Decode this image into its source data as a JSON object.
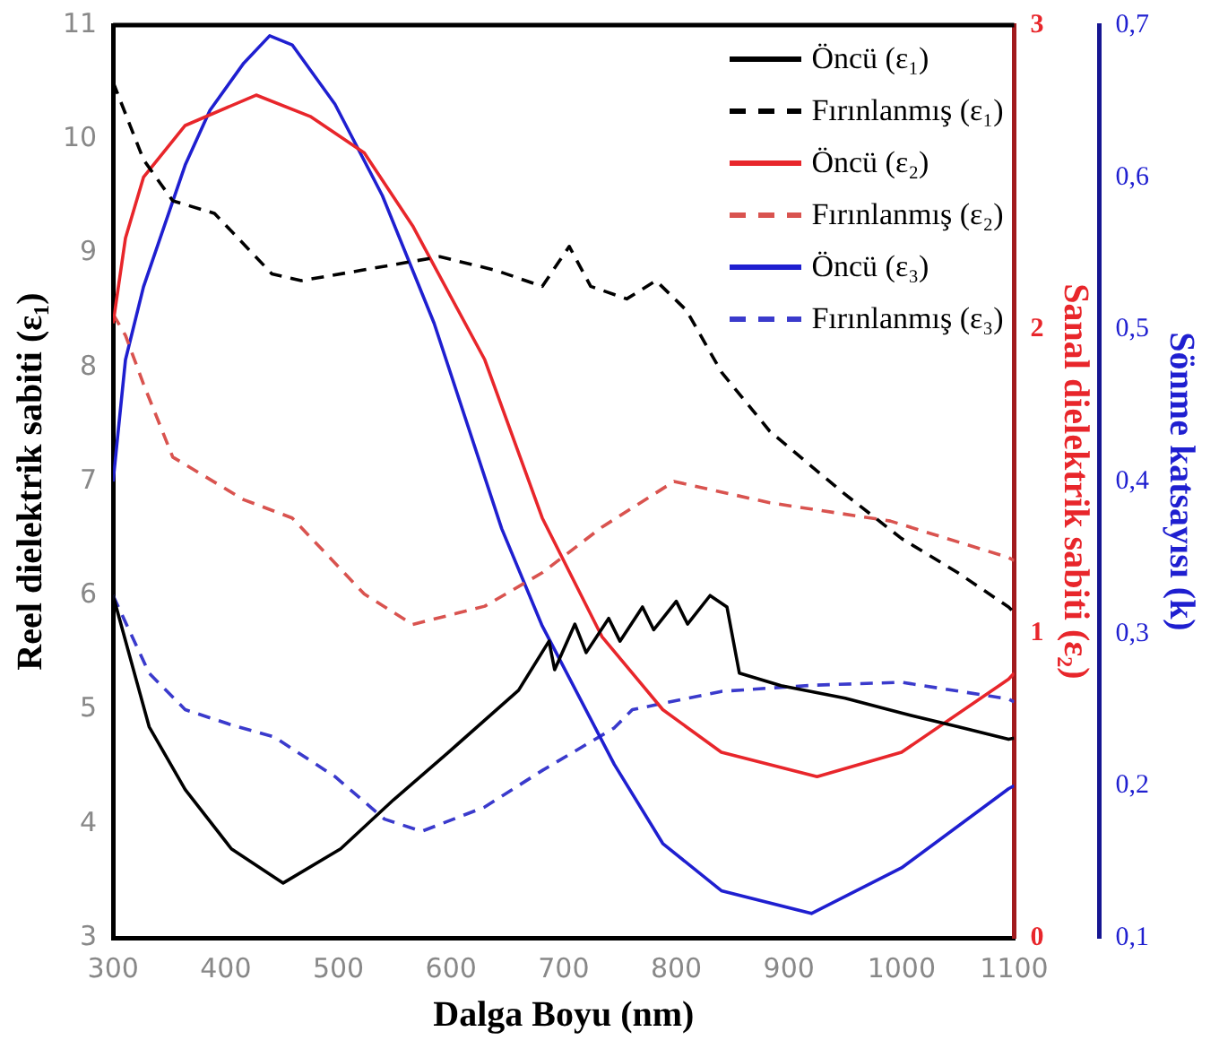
{
  "chart_data": {
    "type": "line",
    "xlabel": "Dalga Boyu (nm)",
    "ylabel": "Reel dielektrik sabiti (ε₁)",
    "y2label": "Sanal dielektrik sabiti (ε₂)",
    "y3label": "Sönme katsayısı (k)",
    "xlim": [
      300,
      1100
    ],
    "xticks": [
      300,
      400,
      500,
      600,
      700,
      800,
      900,
      1000,
      1100
    ],
    "ylim": [
      3,
      11
    ],
    "yticks": [
      3,
      4,
      5,
      6,
      7,
      8,
      9,
      10,
      11
    ],
    "y2lim": [
      0,
      3
    ],
    "y2ticks": [
      0,
      1,
      2,
      3
    ],
    "y3lim": [
      0.1,
      0.7
    ],
    "y3ticks": [
      {
        "value": 0.1,
        "label": "0,1"
      },
      {
        "value": 0.2,
        "label": "0,2"
      },
      {
        "value": 0.3,
        "label": "0,3"
      },
      {
        "value": 0.4,
        "label": "0,4"
      },
      {
        "value": 0.5,
        "label": "0,5"
      },
      {
        "value": 0.6,
        "label": "0,6"
      },
      {
        "value": 0.7,
        "label": "0,7"
      }
    ],
    "grid": false,
    "legend": "top right",
    "series": [
      {
        "name": "Öncü (ε₁)",
        "color": "#000000",
        "line_style": "solid",
        "x": [
          300,
          332,
          364,
          405,
          451,
          502,
          549,
          597,
          660,
          687,
          692,
          710,
          720,
          740,
          750,
          770,
          780,
          800,
          810,
          830,
          845,
          856,
          893,
          950,
          1000,
          1050,
          1095,
          1100
        ],
        "values": [
          6.0,
          4.85,
          4.3,
          3.78,
          3.48,
          3.78,
          4.21,
          4.62,
          5.17,
          5.6,
          5.35,
          5.75,
          5.5,
          5.8,
          5.6,
          5.9,
          5.7,
          5.95,
          5.75,
          6.0,
          5.9,
          5.32,
          5.21,
          5.1,
          4.97,
          4.85,
          4.74,
          4.75
        ]
      },
      {
        "name": "Fırınlanmış (ε₁)",
        "color": "#000000",
        "line_style": "dashed",
        "x": [
          300,
          327,
          353,
          390,
          441,
          467,
          520,
          590,
          640,
          681,
          705,
          724,
          756,
          782,
          809,
          840,
          883,
          947,
          1000,
          1050,
          1095,
          1100
        ],
        "values": [
          10.5,
          9.82,
          9.46,
          9.35,
          8.82,
          8.76,
          8.85,
          8.97,
          8.85,
          8.71,
          9.06,
          8.71,
          8.6,
          8.76,
          8.5,
          7.96,
          7.44,
          6.91,
          6.5,
          6.2,
          5.9,
          5.85
        ]
      },
      {
        "name": "Öncü (ε₂)",
        "color": "#e8262b",
        "line_style": "solid",
        "axis": "y2",
        "x": [
          300,
          311,
          327,
          364,
          427,
          475,
          523,
          566,
          630,
          681,
          734,
          788,
          840,
          925,
          1000,
          1095,
          1100
        ],
        "values": [
          2.02,
          2.3,
          2.5,
          2.67,
          2.77,
          2.7,
          2.58,
          2.34,
          1.9,
          1.38,
          0.99,
          0.75,
          0.61,
          0.53,
          0.61,
          0.85,
          0.87
        ]
      },
      {
        "name": "Fırınlanmış (ε₂)",
        "color": "#d9534f",
        "line_style": "dashed",
        "axis": "y2",
        "x": [
          300,
          311,
          327,
          353,
          416,
          459,
          523,
          566,
          630,
          681,
          734,
          798,
          883,
          990,
          1095,
          1100
        ],
        "values": [
          2.05,
          1.98,
          1.82,
          1.58,
          1.44,
          1.38,
          1.13,
          1.03,
          1.09,
          1.2,
          1.35,
          1.5,
          1.43,
          1.37,
          1.25,
          1.24
        ]
      },
      {
        "name": "Öncü (ε₃)",
        "color": "#1f1fd0",
        "line_style": "solid",
        "axis": "y3",
        "x": [
          300,
          311,
          327,
          364,
          386,
          416,
          439,
          459,
          497,
          539,
          585,
          645,
          681,
          745,
          788,
          840,
          920,
          1000,
          1095,
          1100
        ],
        "values": [
          0.4,
          0.48,
          0.528,
          0.608,
          0.644,
          0.675,
          0.693,
          0.687,
          0.648,
          0.588,
          0.504,
          0.369,
          0.305,
          0.214,
          0.162,
          0.131,
          0.116,
          0.146,
          0.198,
          0.2
        ]
      },
      {
        "name": "Fırınlanmış (ε₃)",
        "color": "#3a3acc",
        "line_style": "dashed",
        "axis": "y3",
        "x": [
          300,
          332,
          364,
          405,
          443,
          497,
          541,
          574,
          630,
          681,
          745,
          761,
          840,
          920,
          1000,
          1095,
          1100
        ],
        "values": [
          0.325,
          0.274,
          0.25,
          0.24,
          0.232,
          0.206,
          0.178,
          0.17,
          0.186,
          0.21,
          0.238,
          0.25,
          0.262,
          0.266,
          0.268,
          0.257,
          0.255
        ]
      }
    ]
  }
}
